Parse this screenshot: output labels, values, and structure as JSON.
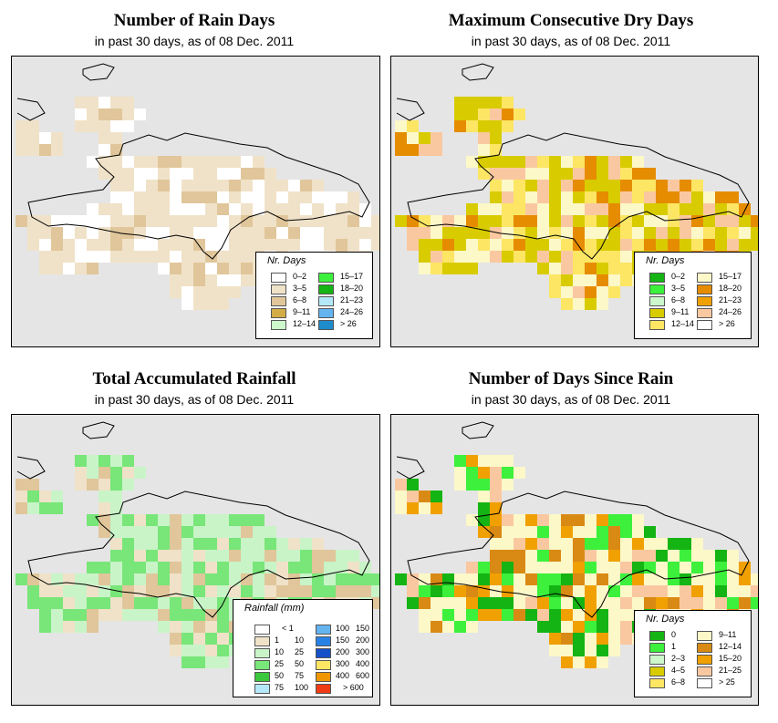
{
  "panels": [
    {
      "title": "Number of Rain Days",
      "subtitle": "in past 30 days, as of  08 Dec. 2011",
      "legend": {
        "title": "Nr. Days",
        "items": [
          {
            "label": "0–2",
            "color": "#ffffff"
          },
          {
            "label": "3–5",
            "color": "#f0e2c8"
          },
          {
            "label": "6–8",
            "color": "#e0c69a"
          },
          {
            "label": "9–11",
            "color": "#d2ac45"
          },
          {
            "label": "12–14",
            "color": "#ccf8cc"
          },
          {
            "label": "15–17",
            "color": "#3cf03c"
          },
          {
            "label": "18–20",
            "color": "#14b414"
          },
          {
            "label": "21–23",
            "color": "#b4e8f8"
          },
          {
            "label": "24–26",
            "color": "#64b4f0"
          },
          {
            "label": "> 26",
            "color": "#1e8ccc"
          }
        ]
      }
    },
    {
      "title": "Maximum Consecutive Dry Days",
      "subtitle": "in past 30 days, as of  08 Dec. 2011",
      "legend": {
        "title": "Nr. Days",
        "items": [
          {
            "label": "0–2",
            "color": "#14b414"
          },
          {
            "label": "3–5",
            "color": "#3cf03c"
          },
          {
            "label": "6–8",
            "color": "#ccf8cc"
          },
          {
            "label": "9–11",
            "color": "#d8cc00"
          },
          {
            "label": "12–14",
            "color": "#fce664"
          },
          {
            "label": "15–17",
            "color": "#fcf8c8"
          },
          {
            "label": "18–20",
            "color": "#e68c00"
          },
          {
            "label": "21–23",
            "color": "#f0a000"
          },
          {
            "label": "24–26",
            "color": "#fac8a0"
          },
          {
            "label": "> 26",
            "color": "#ffffff"
          }
        ]
      }
    },
    {
      "title": "Total Accumulated Rainfall",
      "subtitle": "in past 30 days, as of  08 Dec. 2011",
      "legend": {
        "title": "Rainfall (mm)",
        "items": [
          {
            "from": "",
            "to": "< 1",
            "color": "#ffffff"
          },
          {
            "from": "1",
            "to": "10",
            "color": "#f0e2c8"
          },
          {
            "from": "10",
            "to": "25",
            "color": "#c8f4c8"
          },
          {
            "from": "25",
            "to": "50",
            "color": "#78e678"
          },
          {
            "from": "50",
            "to": "75",
            "color": "#3cc83c"
          },
          {
            "from": "75",
            "to": "100",
            "color": "#b4e8f8"
          },
          {
            "from": "100",
            "to": "150",
            "color": "#64b4f0"
          },
          {
            "from": "150",
            "to": "200",
            "color": "#2882e6"
          },
          {
            "from": "200",
            "to": "300",
            "color": "#1450c8"
          },
          {
            "from": "300",
            "to": "400",
            "color": "#fce664"
          },
          {
            "from": "400",
            "to": "600",
            "color": "#f09600"
          },
          {
            "from": "",
            "to": "> 600",
            "color": "#f03c14"
          }
        ]
      }
    },
    {
      "title": "Number of Days Since Rain",
      "subtitle": "in past 30 days, as of  08 Dec. 2011",
      "legend": {
        "title": "Nr. Days",
        "items": [
          {
            "label": "0",
            "color": "#14b414"
          },
          {
            "label": "1",
            "color": "#3cf03c"
          },
          {
            "label": "2–3",
            "color": "#ccf8cc"
          },
          {
            "label": "4–5",
            "color": "#d8cc00"
          },
          {
            "label": "6–8",
            "color": "#fce664"
          },
          {
            "label": "9–11",
            "color": "#fcf8c8"
          },
          {
            "label": "12–14",
            "color": "#d98a14"
          },
          {
            "label": "15–20",
            "color": "#f0a000"
          },
          {
            "label": "21–25",
            "color": "#fac8a0"
          },
          {
            "label": "> 25",
            "color": "#ffffff"
          }
        ]
      }
    }
  ]
}
